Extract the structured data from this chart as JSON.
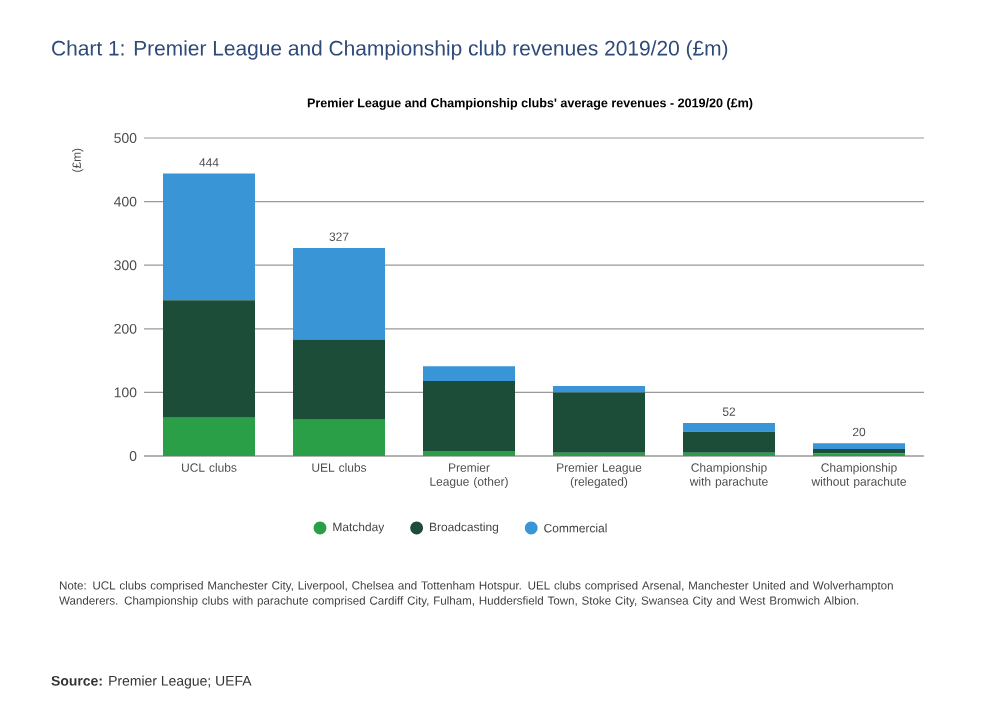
{
  "chart_data": {
    "type": "bar",
    "stacked": true,
    "title": "Chart 1: Premier League and Championship club revenues 2019/20 (£m)",
    "subtitle": "Premier League and Championship clubs' average revenues - 2019/20 (£m)",
    "ylabel": "(£m)",
    "categories": [
      "UCL clubs",
      "UEL clubs",
      "Premier League (other)",
      "Premier League (relegated)",
      "Championship with parachute",
      "Championship without parachute"
    ],
    "series": [
      {
        "name": "Matchday",
        "color": "#2a9f47",
        "values": [
          60,
          57,
          8,
          5,
          5,
          4
        ]
      },
      {
        "name": "Broadcasting",
        "color": "#1c4d38",
        "values": [
          185,
          126,
          110,
          95,
          33,
          7
        ]
      },
      {
        "name": "Commercial",
        "color": "#3a95d6",
        "values": [
          199,
          144,
          23,
          10,
          14,
          9
        ]
      }
    ],
    "totals": [
      "444",
      "327",
      null,
      null,
      "52",
      "20"
    ],
    "ylim": [
      0,
      500
    ],
    "yticks": [
      0,
      100,
      200,
      300,
      400,
      500
    ],
    "grid": "y",
    "legend": "bottom",
    "annotations": [
      "Note: UCL clubs comprised Manchester City, Liverpool, Chelsea and Tottenham Hotspur. UEL clubs comprised Arsenal, Manchester United and Wolverhampton Wanderers. Championship clubs with parachute comprised Cardiff City, Fulham, Huddersfield Town, Stoke City, Swansea City and West Bromwich Albion.",
      "**Source:** Premier League; UEFA"
    ]
  }
}
